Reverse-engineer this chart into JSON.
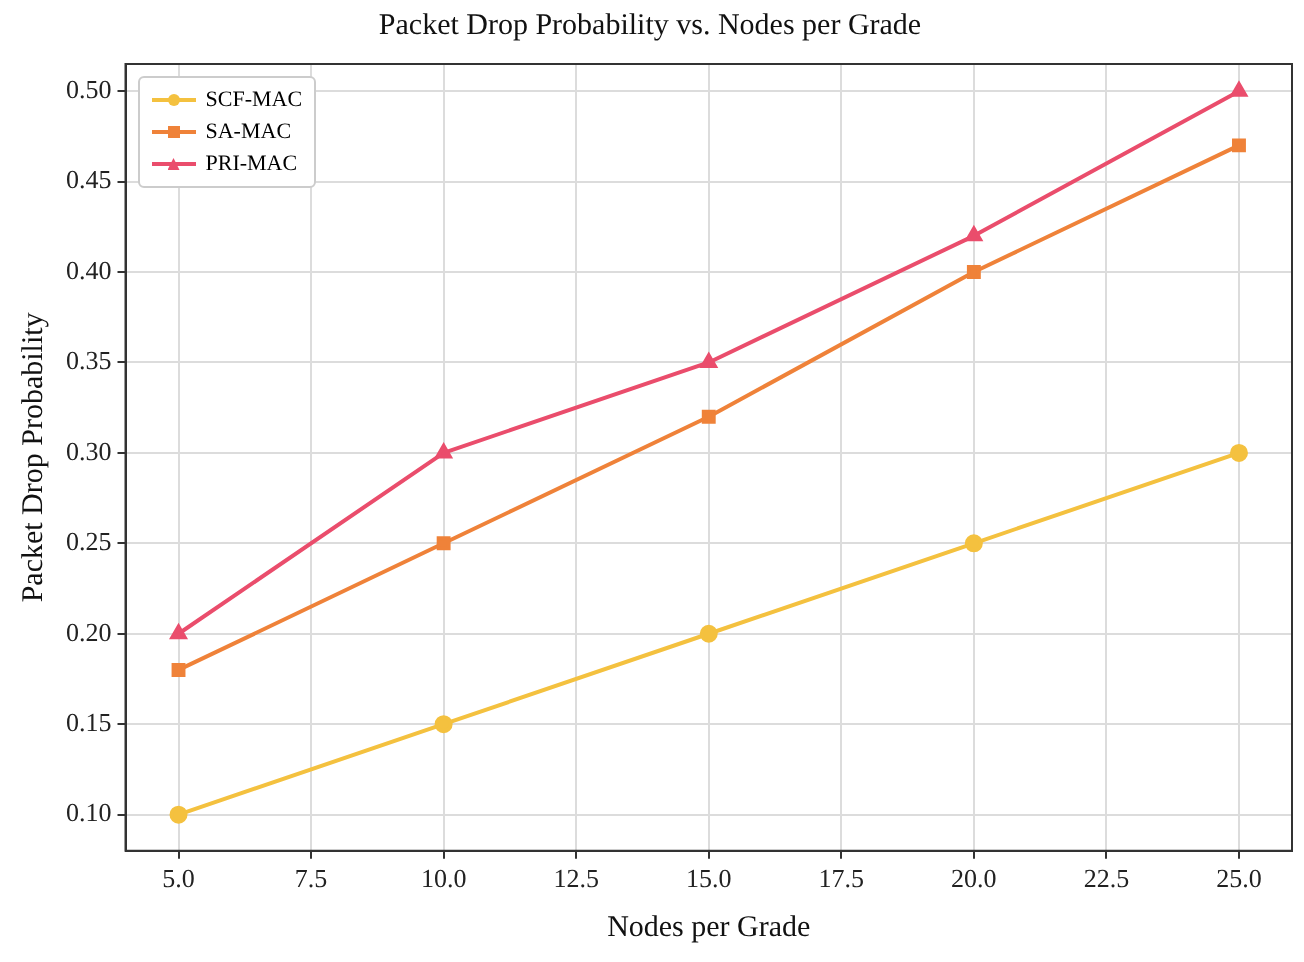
{
  "chart_data": {
    "type": "line",
    "title": "Packet Drop Probability vs. Nodes per Grade",
    "xlabel": "Nodes per Grade",
    "ylabel": "Packet Drop Probability",
    "x": [
      5,
      10,
      15,
      20,
      25
    ],
    "series": [
      {
        "name": "SCF-MAC",
        "color": "#f4c13f",
        "marker": "circle",
        "values": [
          0.1,
          0.15,
          0.2,
          0.25,
          0.3
        ]
      },
      {
        "name": "SA-MAC",
        "color": "#ef8239",
        "marker": "square",
        "values": [
          0.18,
          0.25,
          0.32,
          0.4,
          0.47
        ]
      },
      {
        "name": "PRI-MAC",
        "color": "#ea4d6c",
        "marker": "triangle",
        "values": [
          0.2,
          0.3,
          0.35,
          0.42,
          0.5
        ]
      }
    ],
    "xlim": [
      4,
      26
    ],
    "ylim": [
      0.08,
      0.515
    ],
    "xticks": [
      {
        "value": 5,
        "label": "5.0"
      },
      {
        "value": 7.5,
        "label": "7.5"
      },
      {
        "value": 10,
        "label": "10.0"
      },
      {
        "value": 12.5,
        "label": "12.5"
      },
      {
        "value": 15,
        "label": "15.0"
      },
      {
        "value": 17.5,
        "label": "17.5"
      },
      {
        "value": 20,
        "label": "20.0"
      },
      {
        "value": 22.5,
        "label": "22.5"
      },
      {
        "value": 25,
        "label": "25.0"
      }
    ],
    "yticks": [
      {
        "value": 0.1,
        "label": "0.10"
      },
      {
        "value": 0.15,
        "label": "0.15"
      },
      {
        "value": 0.2,
        "label": "0.20"
      },
      {
        "value": 0.25,
        "label": "0.25"
      },
      {
        "value": 0.3,
        "label": "0.30"
      },
      {
        "value": 0.35,
        "label": "0.35"
      },
      {
        "value": 0.4,
        "label": "0.40"
      },
      {
        "value": 0.45,
        "label": "0.45"
      },
      {
        "value": 0.5,
        "label": "0.50"
      }
    ],
    "grid": true,
    "legend": "top left",
    "line_style": "solid"
  }
}
